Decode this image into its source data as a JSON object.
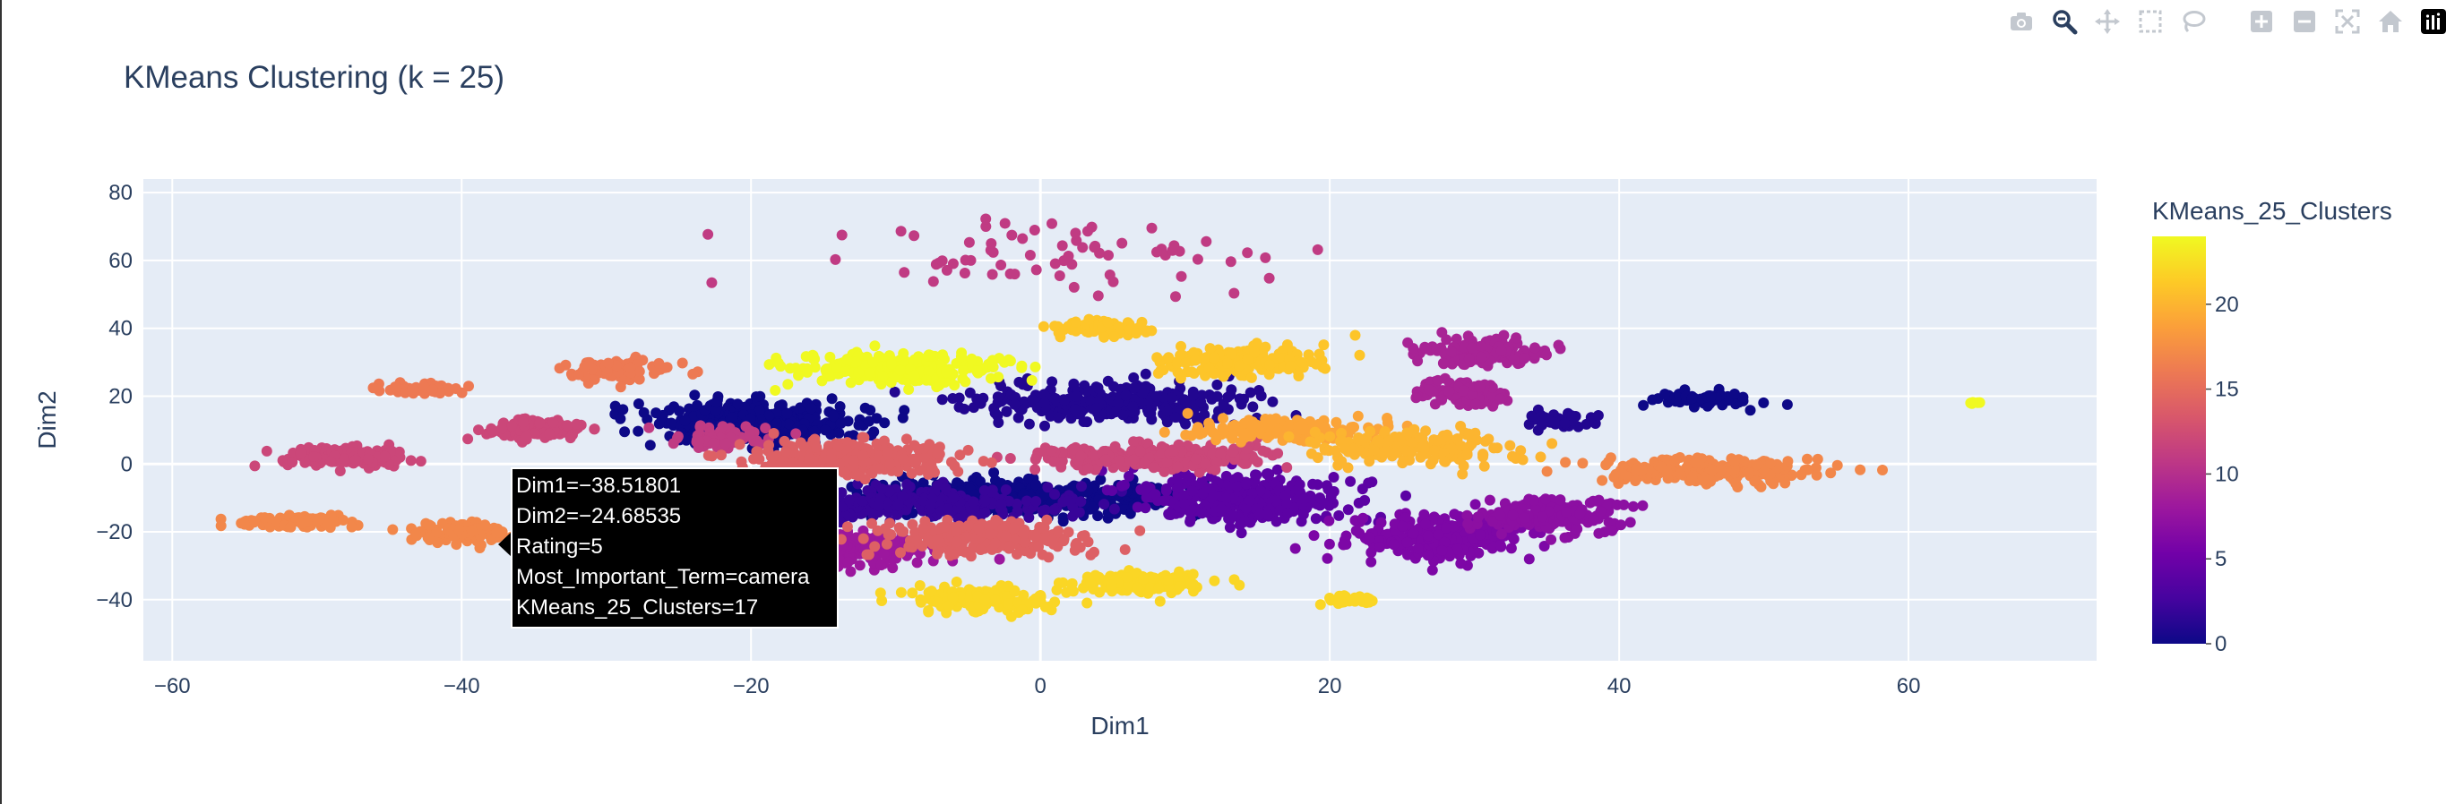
{
  "toolbar": {
    "buttons": [
      {
        "name": "camera-icon",
        "label": "Download plot as a png"
      },
      {
        "name": "zoom-icon",
        "label": "Zoom"
      },
      {
        "name": "pan-icon",
        "label": "Pan"
      },
      {
        "name": "box-select-icon",
        "label": "Box Select"
      },
      {
        "name": "lasso-select-icon",
        "label": "Lasso Select"
      },
      {
        "name": "zoom-in-icon",
        "label": "Zoom in"
      },
      {
        "name": "zoom-out-icon",
        "label": "Zoom out"
      },
      {
        "name": "autoscale-icon",
        "label": "Autoscale"
      },
      {
        "name": "reset-axes-icon",
        "label": "Reset axes"
      },
      {
        "name": "plotly-logo-icon",
        "label": "Produced with Plotly"
      }
    ],
    "active": "zoom-icon"
  },
  "chart_data": {
    "type": "scatter",
    "title": "KMeans Clustering (k = 25)",
    "xlabel": "Dim1",
    "ylabel": "Dim2",
    "xlim": [
      -62,
      73
    ],
    "ylim": [
      -58,
      84
    ],
    "xticks": [
      -60,
      -40,
      -20,
      0,
      20,
      40,
      60
    ],
    "yticks": [
      -40,
      -20,
      0,
      20,
      40,
      60,
      80
    ],
    "grid": true,
    "colorbar": {
      "title": "KMeans_25_Clusters",
      "min": 0,
      "max": 24,
      "ticks": [
        0,
        5,
        10,
        15,
        20
      ],
      "colorscale": "plasma",
      "stops": [
        "#0d0887",
        "#46039f",
        "#7201a8",
        "#9c179e",
        "#bd3786",
        "#d8576b",
        "#ed7953",
        "#fb9f3a",
        "#fdca26",
        "#f0f921"
      ]
    },
    "clusters": [
      {
        "id": 0,
        "cx": -20,
        "cy": 12,
        "sx": 6,
        "sy": 5,
        "n": 420
      },
      {
        "id": 0,
        "cx": -2,
        "cy": -10,
        "sx": 9,
        "sy": 4,
        "n": 520
      },
      {
        "id": 0,
        "cx": 46,
        "cy": 19,
        "sx": 3,
        "sy": 1.8,
        "n": 70
      },
      {
        "id": 1,
        "cx": 36,
        "cy": 13,
        "sx": 2,
        "sy": 2,
        "n": 40
      },
      {
        "id": 1,
        "cx": 5,
        "cy": 18,
        "sx": 8,
        "sy": 5,
        "n": 320
      },
      {
        "id": 2,
        "cx": -9,
        "cy": -12,
        "sx": 10,
        "sy": 4,
        "n": 300
      },
      {
        "id": 4,
        "cx": 14,
        "cy": -10,
        "sx": 6,
        "sy": 6,
        "n": 350
      },
      {
        "id": 6,
        "cx": 28,
        "cy": -22,
        "sx": 5,
        "sy": 5,
        "n": 280
      },
      {
        "id": 7,
        "cx": 35,
        "cy": -15,
        "sx": 4,
        "sy": 4,
        "n": 200
      },
      {
        "id": 8,
        "cx": -13,
        "cy": -25,
        "sx": 5,
        "sy": 4,
        "n": 200
      },
      {
        "id": 9,
        "cx": 31,
        "cy": 33,
        "sx": 3.5,
        "sy": 3,
        "n": 160
      },
      {
        "id": 9,
        "cx": 29,
        "cy": 21,
        "sx": 3,
        "sy": 3,
        "n": 100
      },
      {
        "id": 11,
        "cx": 0,
        "cy": 60,
        "sx": 14,
        "sy": 8,
        "n": 70
      },
      {
        "id": 11,
        "cx": -22,
        "cy": 8,
        "sx": 3,
        "sy": 3,
        "n": 60
      },
      {
        "id": 12,
        "cx": -48,
        "cy": 2,
        "sx": 3.5,
        "sy": 2.5,
        "n": 140
      },
      {
        "id": 12,
        "cx": -35,
        "cy": 10,
        "sx": 3,
        "sy": 3,
        "n": 90
      },
      {
        "id": 12,
        "cx": 8,
        "cy": 2,
        "sx": 7,
        "sy": 3,
        "n": 300
      },
      {
        "id": 14,
        "cx": -13,
        "cy": 2,
        "sx": 6,
        "sy": 4,
        "n": 300
      },
      {
        "id": 14,
        "cx": -4,
        "cy": -22,
        "sx": 6,
        "sy": 4,
        "n": 260
      },
      {
        "id": 16,
        "cx": -29,
        "cy": 28,
        "sx": 3,
        "sy": 3,
        "n": 90
      },
      {
        "id": 16,
        "cx": -43,
        "cy": 22,
        "sx": 2.5,
        "sy": 1.5,
        "n": 50
      },
      {
        "id": 17,
        "cx": -52,
        "cy": -17,
        "sx": 3.5,
        "sy": 1.5,
        "n": 100
      },
      {
        "id": 17,
        "cx": -40,
        "cy": -20,
        "sx": 3,
        "sy": 2.5,
        "n": 90
      },
      {
        "id": 17,
        "cx": 46,
        "cy": -2,
        "sx": 6,
        "sy": 3,
        "n": 240
      },
      {
        "id": 19,
        "cx": 17,
        "cy": 10,
        "sx": 5,
        "sy": 3,
        "n": 160
      },
      {
        "id": 20,
        "cx": 26,
        "cy": 5,
        "sx": 5,
        "sy": 4,
        "n": 200
      },
      {
        "id": 21,
        "cx": 14,
        "cy": 30,
        "sx": 5,
        "sy": 4,
        "n": 170
      },
      {
        "id": 21,
        "cx": 4,
        "cy": 40,
        "sx": 3,
        "sy": 2,
        "n": 80
      },
      {
        "id": 22,
        "cx": -4,
        "cy": -40,
        "sx": 4,
        "sy": 3,
        "n": 150
      },
      {
        "id": 22,
        "cx": 7,
        "cy": -35,
        "sx": 4,
        "sy": 2.5,
        "n": 150
      },
      {
        "id": 22,
        "cx": 22,
        "cy": -40,
        "sx": 1.5,
        "sy": 1,
        "n": 25
      },
      {
        "id": 24,
        "cx": -10,
        "cy": 28,
        "sx": 6,
        "sy": 4,
        "n": 260
      },
      {
        "id": 24,
        "cx": 64.5,
        "cy": 18,
        "sx": 0.4,
        "sy": 0.4,
        "n": 6
      }
    ],
    "hover": {
      "lines": [
        "Dim1=−38.51801",
        "Dim2=−24.68535",
        "Rating=5",
        "Most_Important_Term=camera",
        "KMeans_25_Clusters=17"
      ]
    }
  }
}
